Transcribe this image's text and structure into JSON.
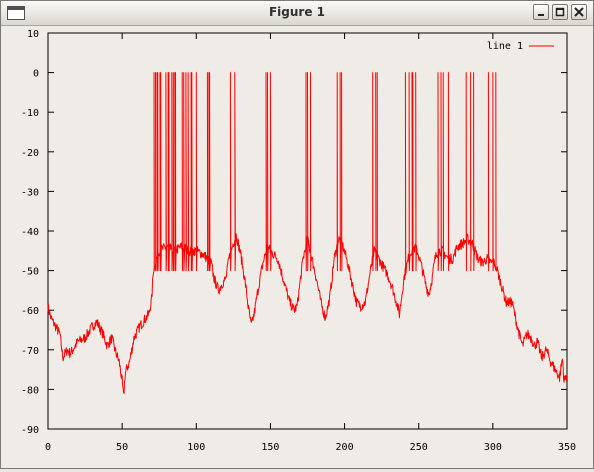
{
  "window": {
    "title": "Figure 1",
    "controls": [
      "minimize",
      "maximize",
      "close"
    ]
  },
  "chart_data": {
    "type": "line",
    "title": "",
    "xlabel": "",
    "ylabel": "",
    "xlim": [
      0,
      350
    ],
    "ylim": [
      -90,
      10
    ],
    "x_ticks": [
      "0",
      "50",
      "100",
      "150",
      "200",
      "250",
      "300",
      "350"
    ],
    "y_ticks": [
      "10",
      "0",
      "-10",
      "-20",
      "-30",
      "-40",
      "-50",
      "-60",
      "-70",
      "-80",
      "-90"
    ],
    "legend": {
      "position": "top-right",
      "entries": [
        "line 1"
      ]
    },
    "grid": false,
    "series": [
      {
        "name": "line 1",
        "color": "#ff0000",
        "baseline_points": [
          [
            0,
            -59
          ],
          [
            2,
            -62
          ],
          [
            5,
            -64
          ],
          [
            8,
            -66
          ],
          [
            10,
            -72
          ],
          [
            13,
            -70
          ],
          [
            15,
            -71
          ],
          [
            20,
            -68
          ],
          [
            25,
            -67
          ],
          [
            30,
            -64
          ],
          [
            33,
            -63
          ],
          [
            37,
            -66
          ],
          [
            40,
            -69
          ],
          [
            43,
            -67
          ],
          [
            46,
            -71
          ],
          [
            48,
            -73
          ],
          [
            50,
            -78
          ],
          [
            51,
            -82
          ],
          [
            52,
            -76
          ],
          [
            55,
            -73
          ],
          [
            58,
            -67
          ],
          [
            62,
            -64
          ],
          [
            66,
            -62
          ],
          [
            68,
            -61
          ],
          [
            70,
            -57
          ],
          [
            71,
            -50
          ],
          [
            73,
            -47
          ],
          [
            75,
            -45
          ],
          [
            80,
            -44
          ],
          [
            85,
            -45
          ],
          [
            90,
            -44
          ],
          [
            95,
            -45
          ],
          [
            100,
            -45
          ],
          [
            105,
            -46
          ],
          [
            110,
            -48
          ],
          [
            112,
            -52
          ],
          [
            115,
            -55
          ],
          [
            118,
            -53
          ],
          [
            120,
            -52
          ],
          [
            122,
            -47
          ],
          [
            125,
            -43
          ],
          [
            127,
            -41
          ],
          [
            130,
            -46
          ],
          [
            133,
            -53
          ],
          [
            135,
            -59
          ],
          [
            137,
            -64
          ],
          [
            139,
            -61
          ],
          [
            142,
            -54
          ],
          [
            145,
            -48
          ],
          [
            148,
            -44
          ],
          [
            150,
            -45
          ],
          [
            155,
            -47
          ],
          [
            160,
            -54
          ],
          [
            163,
            -58
          ],
          [
            166,
            -60
          ],
          [
            168,
            -59
          ],
          [
            172,
            -47
          ],
          [
            175,
            -42
          ],
          [
            178,
            -47
          ],
          [
            181,
            -52
          ],
          [
            184,
            -58
          ],
          [
            187,
            -62
          ],
          [
            190,
            -57
          ],
          [
            193,
            -47
          ],
          [
            196,
            -42
          ],
          [
            199,
            -44
          ],
          [
            202,
            -48
          ],
          [
            205,
            -53
          ],
          [
            208,
            -58
          ],
          [
            211,
            -59
          ],
          [
            214,
            -58
          ],
          [
            217,
            -51
          ],
          [
            220,
            -45
          ],
          [
            223,
            -47
          ],
          [
            226,
            -49
          ],
          [
            229,
            -51
          ],
          [
            232,
            -54
          ],
          [
            235,
            -58
          ],
          [
            237,
            -61
          ],
          [
            240,
            -52
          ],
          [
            243,
            -47
          ],
          [
            246,
            -44
          ],
          [
            249,
            -45
          ],
          [
            252,
            -49
          ],
          [
            255,
            -54
          ],
          [
            257,
            -56
          ],
          [
            259,
            -52
          ],
          [
            261,
            -47
          ],
          [
            263,
            -45
          ],
          [
            266,
            -45
          ],
          [
            270,
            -47
          ],
          [
            273,
            -47
          ],
          [
            276,
            -44
          ],
          [
            280,
            -43
          ],
          [
            283,
            -42
          ],
          [
            286,
            -43
          ],
          [
            290,
            -47
          ],
          [
            293,
            -48
          ],
          [
            296,
            -47
          ],
          [
            299,
            -48
          ],
          [
            301,
            -48
          ],
          [
            303,
            -50
          ],
          [
            306,
            -54
          ],
          [
            309,
            -58
          ],
          [
            313,
            -58
          ],
          [
            317,
            -65
          ],
          [
            320,
            -69
          ],
          [
            323,
            -66
          ],
          [
            326,
            -67
          ],
          [
            328,
            -69
          ],
          [
            330,
            -68
          ],
          [
            333,
            -72
          ],
          [
            336,
            -70
          ],
          [
            339,
            -73
          ],
          [
            342,
            -75
          ],
          [
            345,
            -77
          ],
          [
            347,
            -72
          ],
          [
            348,
            -78
          ],
          [
            350,
            -76
          ]
        ],
        "spike_times": [
          71.5,
          72.5,
          73.5,
          74,
          75.5,
          76,
          79.5,
          81,
          81.5,
          83.5,
          84.5,
          85.5,
          86,
          90.5,
          91.5,
          93,
          94.5,
          96.5,
          97,
          100,
          107.5,
          108.5,
          109,
          123,
          126,
          147,
          148,
          150,
          174,
          175,
          177,
          195,
          197,
          198,
          219,
          221,
          222,
          241,
          243.5,
          245.5,
          246,
          248,
          263,
          265,
          266.5,
          270,
          282,
          285,
          287,
          297,
          300,
          302
        ],
        "spike_peak": 0,
        "spike_trough": -50
      }
    ]
  }
}
